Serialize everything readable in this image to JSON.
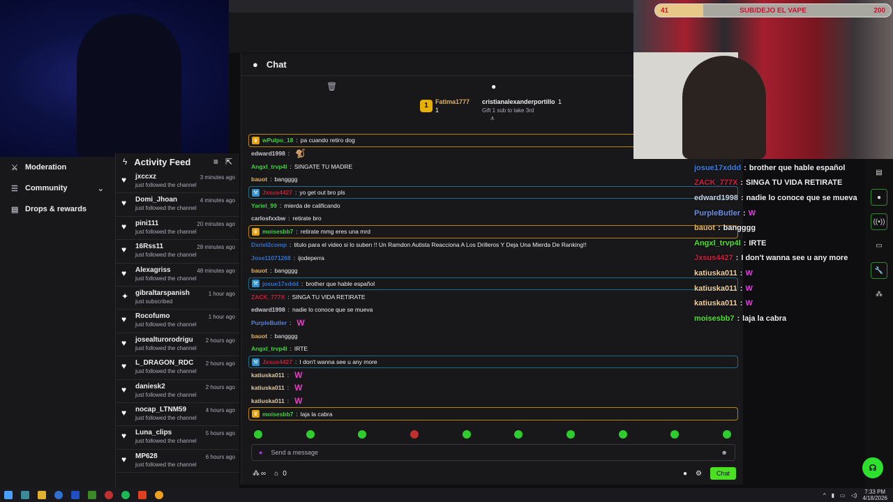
{
  "sidebar": {
    "items": [
      {
        "label": "Moderation",
        "icon": "sword-icon"
      },
      {
        "label": "Community",
        "icon": "people-icon"
      },
      {
        "label": "Drops & rewards",
        "icon": "gift-icon"
      }
    ]
  },
  "feed": {
    "title": "Activity Feed",
    "items": [
      {
        "user": "jxccxz",
        "action": "just followed the channel",
        "time": "3 minutes ago",
        "type": "follow"
      },
      {
        "user": "Domi_Jhoan",
        "action": "just followed the channel",
        "time": "4 minutes ago",
        "type": "follow"
      },
      {
        "user": "pini111",
        "action": "just followed the channel",
        "time": "20 minutes ago",
        "type": "follow"
      },
      {
        "user": "16Rss11",
        "action": "just followed the channel",
        "time": "28 minutes ago",
        "type": "follow"
      },
      {
        "user": "Alexagriss",
        "action": "just followed the channel",
        "time": "48 minutes ago",
        "type": "follow"
      },
      {
        "user": "gibraltarspanish",
        "action": "just subscribed",
        "time": "1 hour ago",
        "type": "sub"
      },
      {
        "user": "Rocofumo",
        "action": "just followed the channel",
        "time": "1 hour ago",
        "type": "follow"
      },
      {
        "user": "josealturorodrigu",
        "action": "just followed the channel",
        "time": "2 hours ago",
        "type": "follow"
      },
      {
        "user": "L_DRAGON_RDC",
        "action": "just followed the channel",
        "time": "2 hours ago",
        "type": "follow"
      },
      {
        "user": "daniesk2",
        "action": "just followed the channel",
        "time": "2 hours ago",
        "type": "follow"
      },
      {
        "user": "nocap_LTNM59",
        "action": "just followed the channel",
        "time": "4 hours ago",
        "type": "follow"
      },
      {
        "user": "Luna_clips",
        "action": "just followed the channel",
        "time": "5 hours ago",
        "type": "follow"
      },
      {
        "user": "MP628",
        "action": "just followed the channel",
        "time": "6 hours ago",
        "type": "follow"
      }
    ]
  },
  "chat": {
    "title": "Chat",
    "leaderboard": {
      "first": {
        "rank": "1",
        "user": "Fatima1777",
        "count": "1"
      },
      "second": {
        "user": "cristianalexanderportillo",
        "count": "1"
      },
      "third": {
        "text": "Gift 1 sub to take 3rd"
      }
    },
    "messages": [
      {
        "user": "wPulpo_18",
        "text": "pa cuando retiro dog",
        "color": "#3fd13f",
        "hl": "gold"
      },
      {
        "user": "edward1998",
        "text": "",
        "color": "#c8c8d0",
        "emote": "🐒"
      },
      {
        "user": "Angxl_trvp4l",
        "text": "SINGATE TU MADRE",
        "color": "#3fd13f"
      },
      {
        "user": "bauot",
        "text": "bangggg",
        "color": "#e0b060"
      },
      {
        "user": "Jxsus4427",
        "text": "yo get out bro pls",
        "color": "#c0203a",
        "hl": "blue"
      },
      {
        "user": "Yariel_99",
        "text": "mierda de calificando",
        "color": "#3fd13f"
      },
      {
        "user": "carlosfxxbw",
        "text": "retirate bro",
        "color": "#c8c8d0"
      },
      {
        "user": "moisesbb7",
        "text": "retirate mmg eres una mrd",
        "color": "#3fd13f",
        "hl": "gold"
      },
      {
        "user": "Dxriel2comp",
        "text": "titulo para el video si lo suben !! Un Ramdon Autista Reacciona A Los Drilleros Y Deja Una Mierda De Ranking!!",
        "color": "#3070d0"
      },
      {
        "user": "Jose11071268",
        "text": "ijodeperra",
        "color": "#3070d0"
      },
      {
        "user": "bauot",
        "text": "bangggg",
        "color": "#e0b060"
      },
      {
        "user": "josue17xddd",
        "text": "brother que hable español",
        "color": "#3070d0",
        "hl": "blue"
      },
      {
        "user": "ZACK_777X",
        "text": "SINGA TU VIDA RETIRATE",
        "color": "#c0203a"
      },
      {
        "user": "edward1998",
        "text": "nadie lo conoce que se mueva",
        "color": "#c8c8d0"
      },
      {
        "user": "PurpleButler",
        "text": "",
        "color": "#5a80d0",
        "emote": "W"
      },
      {
        "user": "bauot",
        "text": "bangggg",
        "color": "#e0b060"
      },
      {
        "user": "Angxl_trvp4l",
        "text": "IRTE",
        "color": "#3fd13f"
      },
      {
        "user": "Jxsus4427",
        "text": "I don't wanna see u any more",
        "color": "#c0203a",
        "hl": "blue"
      },
      {
        "user": "katiuska011",
        "text": "",
        "color": "#e0c8a0",
        "emote": "W"
      },
      {
        "user": "katiuska011",
        "text": "",
        "color": "#e0c8a0",
        "emote": "W"
      },
      {
        "user": "katiuska011",
        "text": "",
        "color": "#e0c8a0",
        "emote": "W"
      },
      {
        "user": "moisesbb7",
        "text": "laja la cabra",
        "color": "#3fd13f",
        "hl": "gold"
      }
    ],
    "input_placeholder": "Send a message",
    "points": "∞",
    "store_count": "0",
    "chat_button": "Chat"
  },
  "goal": {
    "current": "41",
    "target": "200",
    "title": "SUB/DEJO EL VAPE",
    "progress": 0.205
  },
  "overlay": [
    {
      "user": "josue17xddd",
      "text": "brother que hable español",
      "color": "#3a80e0"
    },
    {
      "user": "ZACK_777X",
      "text": "SINGA TU VIDA RETIRATE",
      "color": "#d02040"
    },
    {
      "user": "edward1998",
      "text": "nadie lo conoce que se mueva",
      "color": "#c8d0e0"
    },
    {
      "user": "PurpleButler",
      "text": "W",
      "color": "#7090e0"
    },
    {
      "user": "bauot",
      "text": "bangggg",
      "color": "#e8b860"
    },
    {
      "user": "Angxl_trvp4l",
      "text": "IRTE",
      "color": "#50e030"
    },
    {
      "user": "Jxsus4427",
      "text": "I don't wanna see u any more",
      "color": "#d02040"
    },
    {
      "user": "katiuska011",
      "text": "W",
      "color": "#f0d0a0"
    },
    {
      "user": "katiuska011",
      "text": "W",
      "color": "#f0d0a0"
    },
    {
      "user": "katiuska011",
      "text": "W",
      "color": "#f0d0a0"
    },
    {
      "user": "moisesbb7",
      "text": "laja la cabra",
      "color": "#50e030"
    }
  ],
  "taskbar": {
    "time": "7:33 PM",
    "date": "4/18/2026"
  },
  "colors": {
    "accent": "#4be022",
    "bg": "#18181b"
  }
}
